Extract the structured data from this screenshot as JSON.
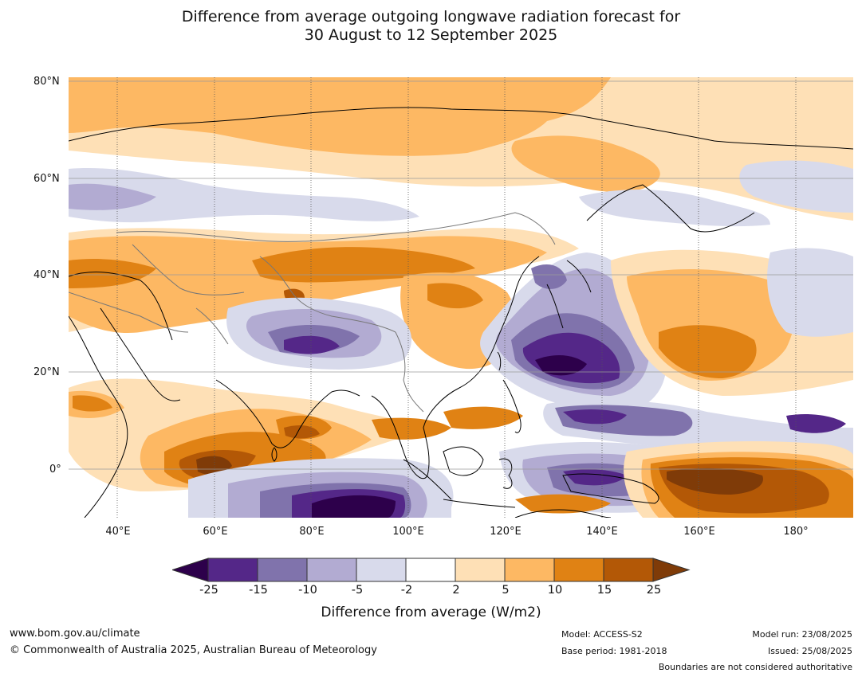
{
  "title_line1": "Difference from average outgoing longwave radiation forecast for",
  "title_line2": "30 August to 12 September 2025",
  "map": {
    "lat_labels": [
      "80°N",
      "60°N",
      "40°N",
      "20°N",
      "0°"
    ],
    "lon_labels": [
      "40°E",
      "60°E",
      "80°E",
      "100°E",
      "120°E",
      "140°E",
      "160°E",
      "180°"
    ],
    "palette": {
      "lt_m25": "#2d004b",
      "m25_m15": "#542788",
      "m15_m10": "#8073ac",
      "m10_m5": "#b2abd2",
      "m5_m2": "#d8daeb",
      "m2_2": "#ffffff",
      "p2_5": "#fee0b6",
      "p5_10": "#fdb863",
      "p10_15": "#e08214",
      "p15_25": "#b35806",
      "gt_25": "#7f3b08"
    }
  },
  "colorbar": {
    "labels": [
      "-25",
      "-15",
      "-10",
      "-5",
      "-2",
      "2",
      "5",
      "10",
      "15",
      "25"
    ],
    "title": "Difference from average (W/m2)"
  },
  "footer": {
    "website": "www.bom.gov.au/climate",
    "copyright": "© Commonwealth of Australia 2025, Australian Bureau of Meteorology",
    "model": "Model: ACCESS-S2",
    "base_period": "Base period: 1981-2018",
    "model_run": "Model run: 23/08/2025",
    "issued": "Issued: 25/08/2025",
    "boundaries": "Boundaries are not considered authoritative"
  }
}
